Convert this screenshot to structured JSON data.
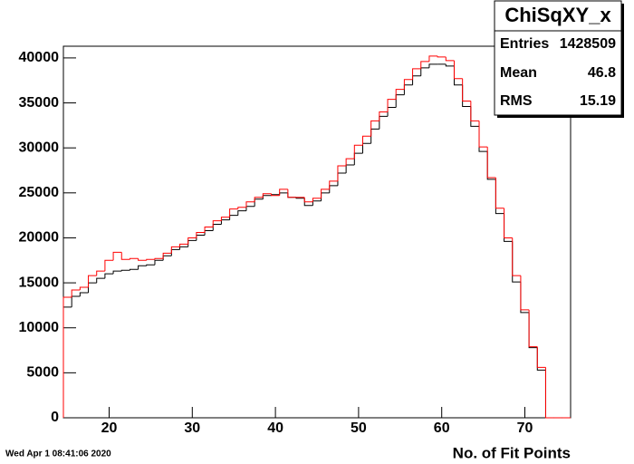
{
  "chart_data": {
    "type": "histogram",
    "x_label": "No. of Fit Points",
    "footer": "Wed Apr  1 08:41:06 2020",
    "bins": [
      14.5,
      15.5,
      16.5,
      17.5,
      18.5,
      19.5,
      20.5,
      21.5,
      22.5,
      23.5,
      24.5,
      25.5,
      26.5,
      27.5,
      28.5,
      29.5,
      30.5,
      31.5,
      32.5,
      33.5,
      34.5,
      35.5,
      36.5,
      37.5,
      38.5,
      39.5,
      40.5,
      41.5,
      42.5,
      43.5,
      44.5,
      45.5,
      46.5,
      47.5,
      48.5,
      49.5,
      50.5,
      51.5,
      52.5,
      53.5,
      54.5,
      55.5,
      56.5,
      57.5,
      58.5,
      59.5,
      60.5,
      61.5,
      62.5,
      63.5,
      64.5,
      65.5,
      66.5,
      67.5,
      68.5,
      69.5,
      70.5,
      71.5,
      72.5,
      73.5,
      74.5,
      75.5
    ],
    "series": [
      {
        "color": "#000000",
        "values": [
          12300,
          13500,
          13900,
          15000,
          15500,
          16000,
          16300,
          16400,
          16500,
          16900,
          17000,
          17500,
          18000,
          18700,
          19000,
          19700,
          20300,
          20800,
          21500,
          22000,
          22500,
          23000,
          23500,
          24300,
          24700,
          24800,
          25000,
          24500,
          24400,
          23600,
          24100,
          25000,
          25800,
          27200,
          28100,
          29400,
          30500,
          32100,
          33500,
          34500,
          35900,
          37000,
          38000,
          38900,
          39300,
          39300,
          39100,
          37000,
          34600,
          32400,
          29600,
          26500,
          22700,
          19600,
          15100,
          11700,
          7800,
          5300,
          0,
          0,
          0
        ]
      },
      {
        "color": "#ff0000",
        "values": [
          13400,
          14200,
          14500,
          15800,
          16300,
          17500,
          18400,
          17600,
          17700,
          17500,
          17600,
          17700,
          18300,
          19000,
          19300,
          20000,
          20600,
          21200,
          21900,
          22300,
          23200,
          23400,
          24000,
          24500,
          24900,
          24700,
          25400,
          24500,
          24500,
          24000,
          24400,
          25400,
          26300,
          28000,
          28800,
          30300,
          31300,
          33000,
          34000,
          35400,
          36500,
          37600,
          38800,
          39600,
          40200,
          40100,
          39700,
          37700,
          35200,
          33000,
          30100,
          26700,
          23300,
          20000,
          15800,
          12000,
          7900,
          5600,
          0,
          0,
          0
        ]
      }
    ],
    "xlim": [
      14.5,
      75.5
    ],
    "xticks": [
      20,
      30,
      40,
      50,
      60,
      70
    ],
    "ylim": [
      0,
      41300
    ],
    "yticks": [
      0,
      5000,
      10000,
      15000,
      20000,
      25000,
      30000,
      35000,
      40000
    ],
    "stats": {
      "title": "ChiSqXY_x",
      "entries_label": "Entries",
      "entries": 1428509,
      "mean_label": "Mean",
      "mean": 46.8,
      "rms_label": "RMS",
      "rms": 15.19
    }
  }
}
